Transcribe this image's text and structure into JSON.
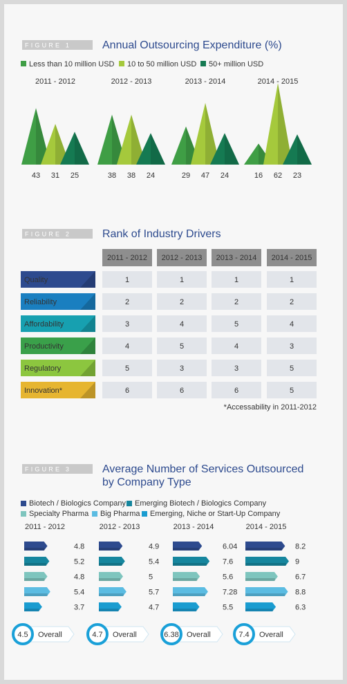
{
  "chart_data": [
    {
      "type": "triangle",
      "figure_label": "FIGURE 1",
      "title": "Annual Outsourcing Expenditure (%)",
      "categories": [
        "2011 - 2012",
        "2012 - 2013",
        "2013 - 2014",
        "2014 - 2015"
      ],
      "series": [
        {
          "name": "Less than 10 million USD",
          "color": "#3f9e45",
          "values": [
            43,
            38,
            29,
            16
          ]
        },
        {
          "name": "10 to 50 million USD",
          "color": "#a5c93c",
          "values": [
            31,
            38,
            47,
            62
          ]
        },
        {
          "name": "50+ million USD",
          "color": "#157a52",
          "values": [
            25,
            24,
            24,
            23
          ]
        }
      ]
    },
    {
      "type": "hbar",
      "figure_label": "FIGURE 3",
      "title_lines": [
        "Average Number of Services Outsourced",
        "by Company Type"
      ],
      "categories": [
        "2011 - 2012",
        "2012 - 2013",
        "2013 - 2014",
        "2014 - 2015"
      ],
      "series": [
        {
          "name": "Biotech / Biologics Company",
          "color": "#2d4a8e",
          "values": [
            4.8,
            4.9,
            6.04,
            8.2
          ]
        },
        {
          "name": "Emerging Biotech / Biologics Company",
          "color": "#16869e",
          "values": [
            5.2,
            5.4,
            7.6,
            9
          ]
        },
        {
          "name": "Specialty Pharma",
          "color": "#7ec5be",
          "values": [
            4.8,
            5,
            5.6,
            6.7
          ]
        },
        {
          "name": "Big Pharma",
          "color": "#5bbce2",
          "values": [
            5.4,
            5.7,
            7.28,
            8.8
          ]
        },
        {
          "name": "Emerging, Niche or Start-Up Company",
          "color": "#1a9cd0",
          "values": [
            3.7,
            4.7,
            5.5,
            6.3
          ]
        }
      ],
      "overall_label": "Overall",
      "overall": [
        4.5,
        4.7,
        6.38,
        7.4
      ],
      "overall_color": "#1aa0d8"
    }
  ],
  "table": {
    "figure_label": "FIGURE 2",
    "title": "Rank of Industry Drivers",
    "columns": [
      "2011 - 2012",
      "2012 - 2013",
      "2013 - 2014",
      "2014 - 2015"
    ],
    "rows": [
      {
        "label": "Quality",
        "color": "#2d4a8e",
        "values": [
          1,
          1,
          1,
          1
        ]
      },
      {
        "label": "Reliability",
        "color": "#1a7fc0",
        "values": [
          2,
          2,
          2,
          2
        ]
      },
      {
        "label": "Affordability",
        "color": "#17a0b0",
        "values": [
          3,
          4,
          5,
          4
        ]
      },
      {
        "label": "Productivity",
        "color": "#3aa04a",
        "values": [
          4,
          5,
          4,
          3
        ]
      },
      {
        "label": "Regulatory",
        "color": "#8cc63f",
        "values": [
          5,
          3,
          3,
          5
        ]
      },
      {
        "label": "Innovation*",
        "color": "#e6b530",
        "values": [
          6,
          6,
          6,
          5
        ]
      }
    ],
    "footnote": "*Accessability in 2011-2012"
  }
}
